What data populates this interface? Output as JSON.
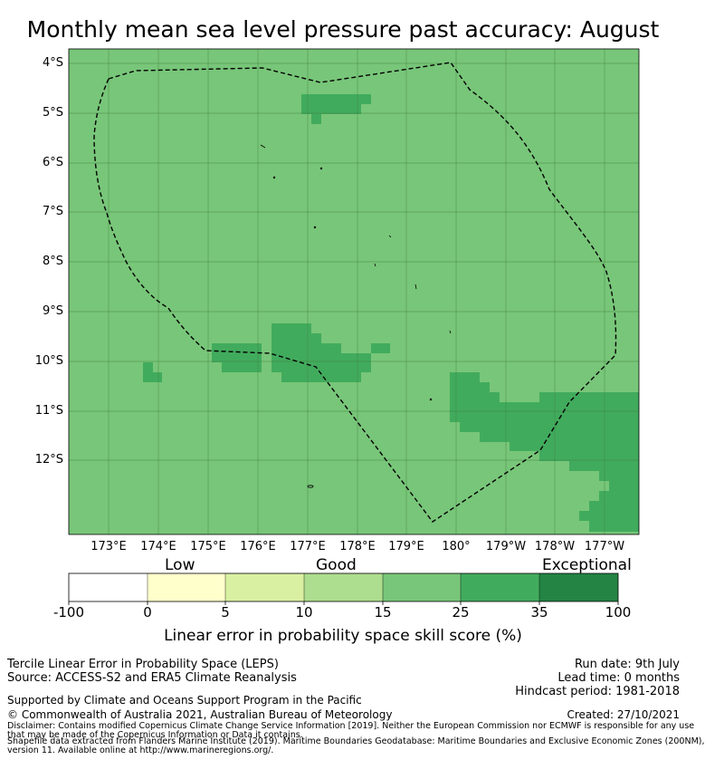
{
  "title": "Monthly mean sea level pressure past accuracy: August",
  "map": {
    "lat_labels": [
      "4°S",
      "5°S",
      "6°S",
      "7°S",
      "8°S",
      "9°S",
      "10°S",
      "11°S",
      "12°S"
    ],
    "lon_labels": [
      "173°E",
      "174°E",
      "175°E",
      "176°E",
      "177°E",
      "178°E",
      "179°E",
      "180°",
      "179°W",
      "178°W",
      "177°W"
    ],
    "colors": {
      "band_15_25": "#78c679",
      "band_25_35": "#41ab5d",
      "border": "#000000"
    }
  },
  "colorbar": {
    "categories": [
      "Low",
      "Good",
      "Exceptional"
    ],
    "ticks": [
      "-100",
      "0",
      "5",
      "10",
      "15",
      "25",
      "35",
      "100"
    ],
    "colors": [
      "#ffffff",
      "#ffffcc",
      "#d9f0a3",
      "#addd8e",
      "#78c679",
      "#41ab5d",
      "#238443"
    ],
    "label": "Linear error in probability space skill score (%)"
  },
  "footer": {
    "line1": "Tercile Linear Error in Probability Space (LEPS)",
    "line2": "Source: ACCESS-S2 and ERA5 Climate Reanalysis",
    "line3": "Supported by Climate and Oceans Support Program in the Pacific",
    "line4": "© Commonwealth of Australia 2021, Australian Bureau of Meteorology",
    "run_date": "Run date: 9th July",
    "lead_time": "Lead time: 0 months",
    "hindcast": "Hindcast period: 1981-2018",
    "created": "Created: 27/10/2021",
    "disclaimer1": "Disclaimer: Contains modified Copernicus Climate Change Service Information [2019]. Neither the European Commission nor ECMWF is responsible for any use",
    "disclaimer2": "that may be made of the Copernicus Information or Data it contains.",
    "shapefile1": "Shapefile data extracted from Flanders Marine Institute (2019). Maritime Boundaries Geodatabase: Maritime Boundaries and Exclusive Economic Zones (200NM),",
    "shapefile2": "version 11. Available online at http://www.marineregions.org/."
  }
}
